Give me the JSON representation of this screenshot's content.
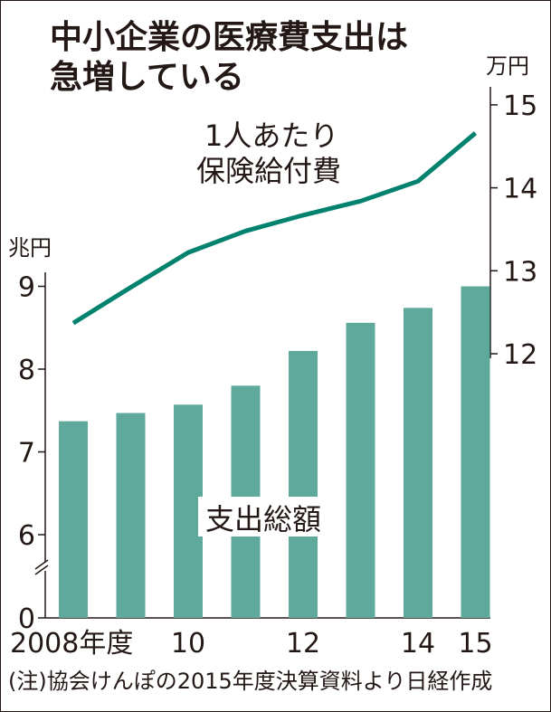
{
  "colors": {
    "bar": "#5fa99c",
    "line": "#00826e",
    "axis": "#231815",
    "text": "#231815",
    "background": "#ffffff"
  },
  "chart_data": {
    "type": "bar+line",
    "title": [
      "中小企業の医療費支出は",
      "急増している"
    ],
    "categories": [
      "2008",
      "2009",
      "2010",
      "2011",
      "2012",
      "2013",
      "2014",
      "2015"
    ],
    "x_tick_labels": [
      "2008年度",
      "10",
      "12",
      "14",
      "15"
    ],
    "x_tick_categories": [
      "2008",
      "2010",
      "2012",
      "2014",
      "2015"
    ],
    "bar_series": {
      "name": "支出総額",
      "unit": "兆円",
      "axis": "left",
      "values": [
        7.37,
        7.47,
        7.57,
        7.8,
        8.22,
        8.56,
        8.74,
        9.0
      ]
    },
    "line_series": {
      "name": "1人あたり保険給付費",
      "name_lines": [
        "1人あたり",
        "保険給付費"
      ],
      "unit": "万円",
      "axis": "right",
      "values": [
        12.37,
        12.8,
        13.22,
        13.48,
        13.67,
        13.84,
        14.08,
        14.66
      ]
    },
    "left_axis": {
      "unit": "兆円",
      "ticks": [
        "0",
        "6",
        "7",
        "8",
        "9"
      ],
      "tick_values": [
        0,
        6,
        7,
        8,
        9
      ],
      "ylim": [
        5.45,
        9.0
      ],
      "broken": true
    },
    "right_axis": {
      "unit": "万円",
      "ticks": [
        "12",
        "13",
        "14",
        "15"
      ],
      "tick_values": [
        12,
        13,
        14,
        15
      ],
      "ylim": [
        12,
        15
      ]
    },
    "note": "(注)協会けんぽの2015年度決算資料より日経作成"
  }
}
